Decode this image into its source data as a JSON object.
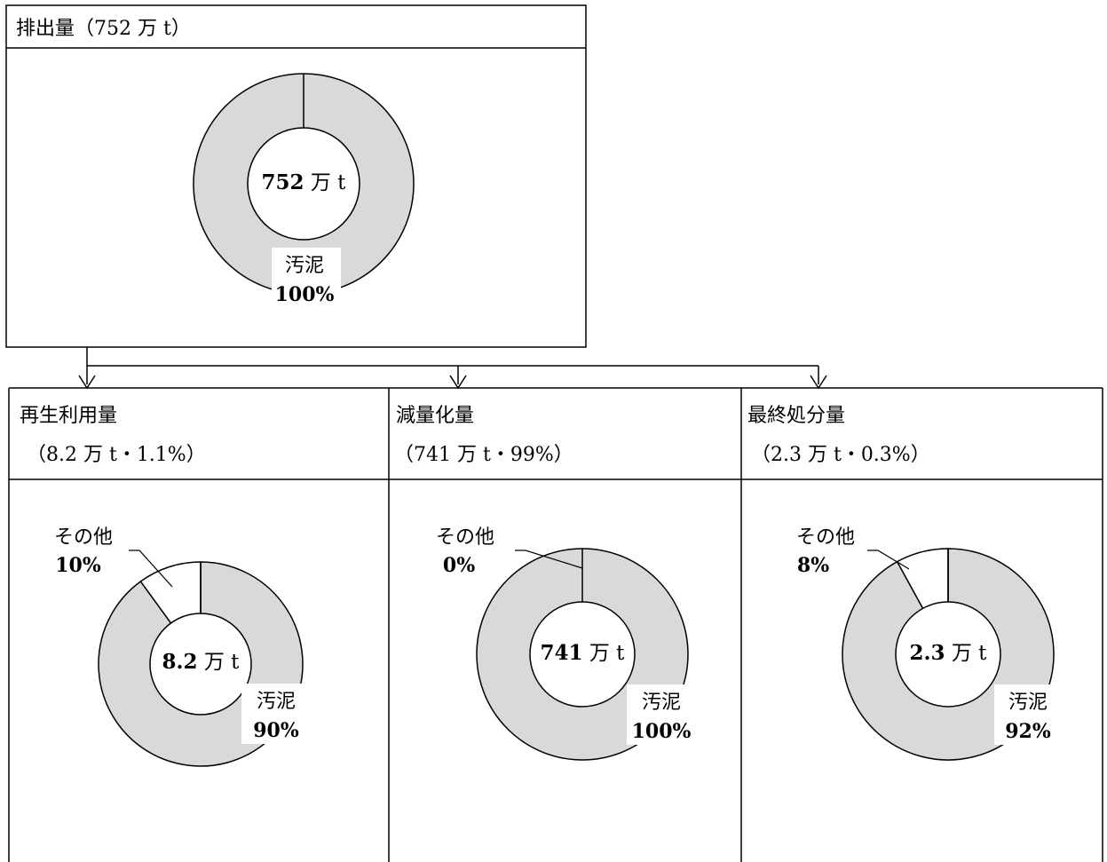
{
  "top": {
    "header": "排出量（752 万 t）",
    "center_num": "752",
    "center_unit": " 万 t"
  },
  "panels": [
    {
      "title": "再生利用量",
      "subtitle": "（8.2 万 t・1.1%）",
      "center_num": "8.2",
      "center_unit": " 万 t"
    },
    {
      "title": "減量化量",
      "subtitle": "（741 万 t・99%）",
      "center_num": "741",
      "center_unit": " 万 t"
    },
    {
      "title": "最終処分量",
      "subtitle": "（2.3 万 t・0.3%）",
      "center_num": "2.3",
      "center_unit": " 万 t"
    }
  ],
  "colors": {
    "sludge": "#d9d9d9",
    "other": "#ffffff",
    "line": "#000000"
  },
  "chart_data": [
    {
      "type": "pie",
      "title": "排出量（752 万 t）",
      "slices": [
        {
          "label": "汚泥",
          "value": 100,
          "display": "100%"
        }
      ]
    },
    {
      "type": "pie",
      "title": "再生利用量",
      "slices": [
        {
          "label": "汚泥",
          "value": 90,
          "display": "90%"
        },
        {
          "label": "その他",
          "value": 10,
          "display": "10%"
        }
      ]
    },
    {
      "type": "pie",
      "title": "減量化量",
      "slices": [
        {
          "label": "汚泥",
          "value": 100,
          "display": "100%"
        },
        {
          "label": "その他",
          "value": 0,
          "display": "0%"
        }
      ]
    },
    {
      "type": "pie",
      "title": "最終処分量",
      "slices": [
        {
          "label": "汚泥",
          "value": 92,
          "display": "92%"
        },
        {
          "label": "その他",
          "value": 8,
          "display": "8%"
        }
      ]
    }
  ]
}
